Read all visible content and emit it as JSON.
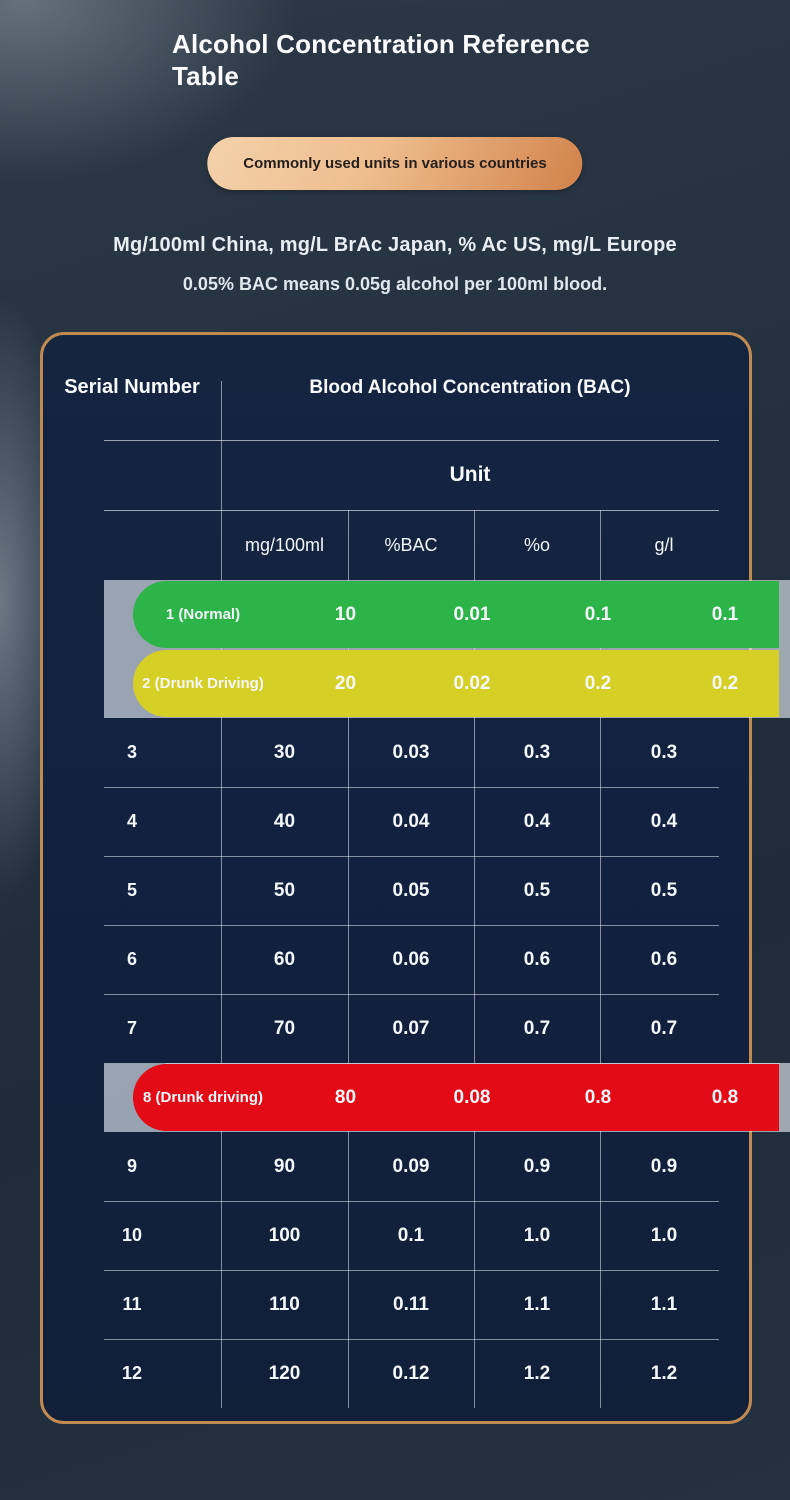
{
  "header": {
    "title": "Alcohol Concentration Reference Table",
    "badge": "Commonly used units in various countries",
    "note_units": "Mg/100ml China, mg/L BrAc Japan, % Ac US, mg/L Europe",
    "note_definition": "0.05% BAC means 0.05g alcohol per 100ml blood."
  },
  "chart_data": {
    "type": "table",
    "title": "Alcohol Concentration Reference Table",
    "serial_header": "Serial Number",
    "column_group_label": "Blood Alcohol Concentration (BAC)",
    "unit_label": "Unit",
    "columns": [
      "mg/100ml",
      "%BAC",
      "%o",
      "g/l"
    ],
    "rows": [
      {
        "serial": "1 (Normal)",
        "highlight": "green",
        "values": [
          "10",
          "0.01",
          "0.1",
          "0.1"
        ]
      },
      {
        "serial": "2 (Drunk Driving)",
        "highlight": "yellow",
        "values": [
          "20",
          "0.02",
          "0.2",
          "0.2"
        ]
      },
      {
        "serial": "3",
        "highlight": "none",
        "values": [
          "30",
          "0.03",
          "0.3",
          "0.3"
        ]
      },
      {
        "serial": "4",
        "highlight": "none",
        "values": [
          "40",
          "0.04",
          "0.4",
          "0.4"
        ]
      },
      {
        "serial": "5",
        "highlight": "none",
        "values": [
          "50",
          "0.05",
          "0.5",
          "0.5"
        ]
      },
      {
        "serial": "6",
        "highlight": "none",
        "values": [
          "60",
          "0.06",
          "0.6",
          "0.6"
        ]
      },
      {
        "serial": "7",
        "highlight": "none",
        "values": [
          "70",
          "0.07",
          "0.7",
          "0.7"
        ]
      },
      {
        "serial": "8 (Drunk driving)",
        "highlight": "red",
        "values": [
          "80",
          "0.08",
          "0.8",
          "0.8"
        ]
      },
      {
        "serial": "9",
        "highlight": "none",
        "values": [
          "90",
          "0.09",
          "0.9",
          "0.9"
        ]
      },
      {
        "serial": "10",
        "highlight": "none",
        "values": [
          "100",
          "0.1",
          "1.0",
          "1.0"
        ]
      },
      {
        "serial": "11",
        "highlight": "none",
        "values": [
          "110",
          "0.11",
          "1.1",
          "1.1"
        ]
      },
      {
        "serial": "12",
        "highlight": "none",
        "values": [
          "120",
          "0.12",
          "1.2",
          "1.2"
        ]
      }
    ],
    "highlight_colors": {
      "green": "#2cb448",
      "yellow": "#d6d026",
      "red": "#e30b16"
    },
    "legend_position": "none",
    "grid": "partial"
  },
  "colors": {
    "table_border": "#c08b51",
    "table_background": "#122140",
    "page_background": "#243140",
    "badge_gradient_start": "#f3cfa8",
    "badge_gradient_end": "#d2824b",
    "text_primary": "#f7f9fb"
  }
}
